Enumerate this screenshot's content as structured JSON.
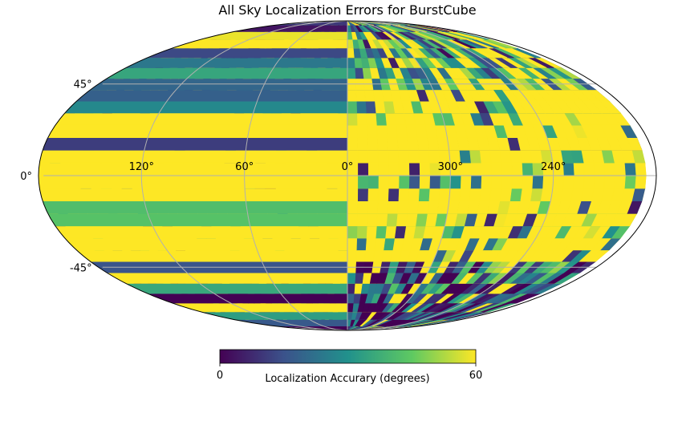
{
  "chart_data": {
    "type": "heatmap",
    "projection": "mollweide",
    "title": "All Sky Localization Errors for BurstCube",
    "colormap": "viridis",
    "color_stops": [
      "#440154",
      "#3b528b",
      "#21918c",
      "#5ec962",
      "#fde725"
    ],
    "value_range": [
      0,
      60
    ],
    "grid": true,
    "longitude_ticks": [
      "120°",
      "60°",
      "0°",
      "300°",
      "240°"
    ],
    "longitude_tick_values": [
      120,
      60,
      0,
      300,
      240
    ],
    "latitude_ticks": [
      "45°",
      "0°",
      "-45°"
    ],
    "latitude_tick_values": [
      45,
      0,
      -45
    ],
    "colorbar": {
      "orientation": "horizontal",
      "placement": "bottom",
      "label": "Localization Accurary (degrees)",
      "min_label": "0",
      "max_label": "60"
    },
    "latitude_profile": [
      {
        "lat": 75,
        "value": 30
      },
      {
        "lat": 60,
        "value": 34
      },
      {
        "lat": 45,
        "value": 45
      },
      {
        "lat": 30,
        "value": 56
      },
      {
        "lat": 15,
        "value": 59
      },
      {
        "lat": 0,
        "value": 59
      },
      {
        "lat": -15,
        "value": 59
      },
      {
        "lat": -30,
        "value": 57
      },
      {
        "lat": -45,
        "value": 22
      },
      {
        "lat": -60,
        "value": 10
      },
      {
        "lat": -75,
        "value": 8
      }
    ]
  }
}
